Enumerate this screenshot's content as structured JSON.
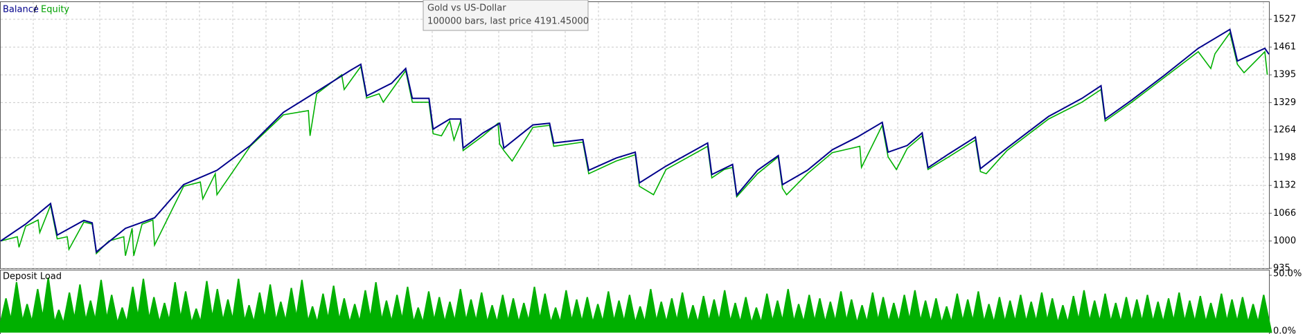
{
  "chart_data": [
    {
      "type": "line",
      "legend_separator": "/",
      "series": [
        {
          "name": "Equity",
          "color": "#00b000",
          "x": [
            0,
            20,
            22,
            30,
            45,
            47,
            60,
            68,
            80,
            82,
            100,
            110,
            115,
            130,
            148,
            150,
            158,
            160,
            170,
            183,
            185,
            220,
            240,
            243,
            258,
            260,
            300,
            340,
            370,
            372,
            380,
            410,
            413,
            433,
            440,
            455,
            460,
            487,
            495,
            515,
            520,
            530,
            540,
            545,
            553,
            556,
            580,
            598,
            600,
            605,
            615,
            640,
            660,
            665,
            700,
            707,
            740,
            763,
            768,
            785,
            800,
            850,
            855,
            870,
            880,
            885,
            910,
            935,
            940,
            945,
            970,
            1000,
            1033,
            1035,
            1060,
            1067,
            1077,
            1090,
            1108,
            1115,
            1140,
            1172,
            1178,
            1185,
            1210,
            1260,
            1300,
            1323,
            1328,
            1360,
            1400,
            1440,
            1455,
            1460,
            1478,
            1487,
            1495,
            1520,
            1523
          ],
          "values": [
            1000,
            1010,
            985,
            1035,
            1050,
            1020,
            1085,
            1005,
            1010,
            980,
            1045,
            1040,
            970,
            1000,
            1010,
            965,
            1030,
            965,
            1040,
            1050,
            990,
            1130,
            1140,
            1100,
            1160,
            1110,
            1225,
            1300,
            1310,
            1250,
            1350,
            1395,
            1360,
            1415,
            1340,
            1350,
            1330,
            1405,
            1330,
            1330,
            1255,
            1250,
            1285,
            1240,
            1285,
            1215,
            1250,
            1280,
            1230,
            1215,
            1190,
            1270,
            1275,
            1225,
            1235,
            1160,
            1190,
            1205,
            1130,
            1110,
            1170,
            1225,
            1150,
            1170,
            1175,
            1105,
            1160,
            1200,
            1125,
            1110,
            1160,
            1210,
            1225,
            1175,
            1275,
            1200,
            1170,
            1220,
            1250,
            1170,
            1200,
            1240,
            1165,
            1160,
            1215,
            1290,
            1330,
            1360,
            1285,
            1330,
            1390,
            1450,
            1410,
            1445,
            1495,
            1420,
            1400,
            1450,
            1395
          ]
        },
        {
          "name": "Balance",
          "color": "#00008b",
          "x": [
            0,
            30,
            60,
            68,
            100,
            110,
            115,
            150,
            185,
            220,
            260,
            300,
            340,
            380,
            420,
            433,
            440,
            470,
            487,
            495,
            515,
            520,
            540,
            553,
            556,
            580,
            600,
            605,
            640,
            660,
            665,
            700,
            707,
            740,
            763,
            768,
            800,
            850,
            855,
            880,
            885,
            910,
            935,
            940,
            970,
            1000,
            1030,
            1060,
            1067,
            1090,
            1108,
            1115,
            1140,
            1172,
            1178,
            1210,
            1260,
            1300,
            1323,
            1328,
            1360,
            1400,
            1440,
            1478,
            1487,
            1520,
            1525
          ],
          "values": [
            1000,
            1040,
            1089,
            1014,
            1049,
            1043,
            974,
            1030,
            1055,
            1134,
            1168,
            1227,
            1306,
            1355,
            1405,
            1420,
            1345,
            1375,
            1410,
            1339,
            1339,
            1266,
            1290,
            1290,
            1221,
            1257,
            1280,
            1221,
            1276,
            1280,
            1233,
            1241,
            1168,
            1197,
            1211,
            1138,
            1178,
            1233,
            1158,
            1182,
            1109,
            1168,
            1203,
            1134,
            1168,
            1217,
            1247,
            1282,
            1211,
            1227,
            1257,
            1174,
            1207,
            1247,
            1172,
            1221,
            1296,
            1339,
            1369,
            1290,
            1335,
            1395,
            1458,
            1503,
            1428,
            1458,
            1444
          ]
        }
      ],
      "xlim": [
        0,
        1525
      ],
      "ylim": [
        935,
        1568
      ],
      "yticks": [
        935,
        1000,
        1066,
        1132,
        1198,
        1264,
        1329,
        1395,
        1461,
        1527
      ],
      "grid": true,
      "tooltip": {
        "title": "Gold vs US-Dollar",
        "text": "100000 bars, last price 4191.45000"
      }
    },
    {
      "type": "bar",
      "title": "Deposit Load",
      "color": "#00b000",
      "values": [
        30,
        44,
        25,
        38,
        48,
        20,
        35,
        42,
        28,
        46,
        33,
        22,
        40,
        47,
        31,
        26,
        44,
        36,
        21,
        45,
        38,
        29,
        47,
        24,
        35,
        42,
        27,
        39,
        46,
        23,
        34,
        41,
        30,
        25,
        37,
        44,
        28,
        33,
        40,
        22,
        36,
        31,
        27,
        38,
        29,
        35,
        24,
        33,
        30,
        26,
        40,
        34,
        22,
        37,
        29,
        31,
        25,
        36,
        28,
        33,
        23,
        38,
        27,
        30,
        35,
        24,
        32,
        29,
        37,
        26,
        31,
        22,
        34,
        28,
        38,
        25,
        33,
        30,
        27,
        36,
        29,
        24,
        35,
        31,
        26,
        33,
        37,
        28,
        30,
        23,
        34,
        29,
        36,
        25,
        31,
        28,
        33,
        27,
        35,
        30,
        24,
        32,
        37,
        28,
        34,
        26,
        31,
        29,
        33,
        27,
        30,
        35,
        28,
        32,
        26,
        34,
        29,
        31,
        25,
        33
      ],
      "ylim": [
        0,
        50
      ],
      "yticks": [
        {
          "value": 0,
          "label": "0.0%"
        },
        {
          "value": 50,
          "label": "50.0%"
        }
      ]
    }
  ]
}
